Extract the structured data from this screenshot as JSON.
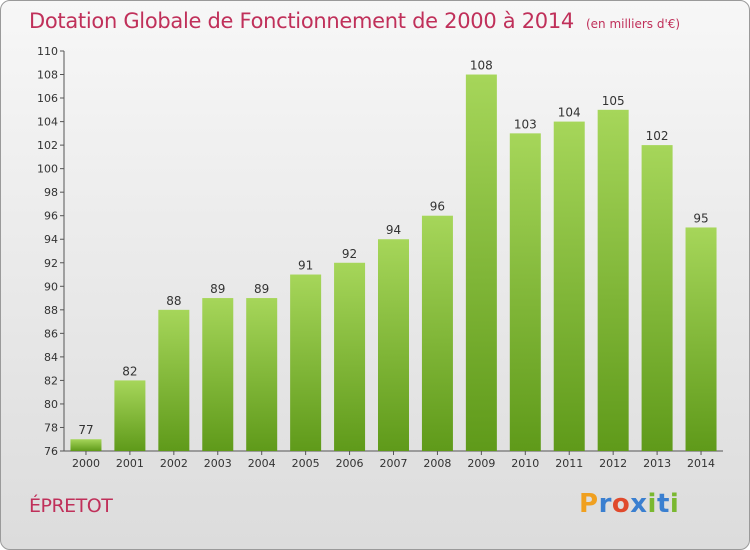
{
  "title": "Dotation Globale de Fonctionnement de 2000 à 2014",
  "unit": "(en milliers d'€)",
  "commune": "ÉPRETOT",
  "brand": {
    "letters": [
      "P",
      "r",
      "o",
      "x",
      "i",
      "t",
      "i"
    ],
    "colors": [
      "#f0a020",
      "#3a7fd0",
      "#e04a2c",
      "#3a7fd0",
      "#7ab830",
      "#3a7fd0",
      "#7ab830"
    ]
  },
  "colors": {
    "bar_light": "#a6d65a",
    "bar_dark": "#5f9a1a",
    "title": "#c0305a"
  },
  "chart_data": {
    "type": "bar",
    "categories": [
      "2000",
      "2001",
      "2002",
      "2003",
      "2004",
      "2005",
      "2006",
      "2007",
      "2008",
      "2009",
      "2010",
      "2011",
      "2012",
      "2013",
      "2014"
    ],
    "values": [
      77,
      82,
      88,
      89,
      89,
      91,
      92,
      94,
      96,
      108,
      103,
      104,
      105,
      102,
      95
    ],
    "ylim": [
      76,
      110
    ],
    "yticks": [
      76,
      78,
      80,
      82,
      84,
      86,
      88,
      90,
      92,
      94,
      96,
      98,
      100,
      102,
      104,
      106,
      108,
      110
    ],
    "grid": false
  }
}
